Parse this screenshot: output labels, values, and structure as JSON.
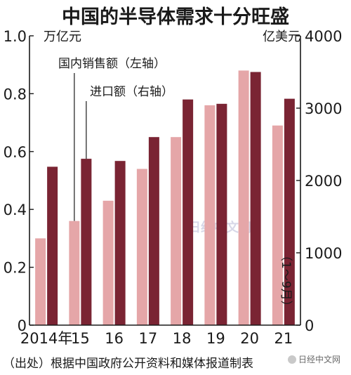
{
  "chart_data": {
    "type": "bar",
    "title": "中国的半导体需求十分旺盛",
    "categories": [
      "2014年",
      "15",
      "16",
      "17",
      "18",
      "19",
      "20",
      "21"
    ],
    "series": [
      {
        "name": "国内销售额（左轴）",
        "axis": "left",
        "color": "#e5a6a8",
        "values": [
          0.3,
          0.36,
          0.43,
          0.54,
          0.65,
          0.76,
          0.88,
          0.69
        ]
      },
      {
        "name": "进口额（右轴）",
        "axis": "right",
        "color": "#7a2433",
        "values": [
          2190,
          2300,
          2270,
          2600,
          3120,
          3060,
          3500,
          3130
        ]
      }
    ],
    "ylabel_left": "万亿元",
    "ylabel_right": "亿美元",
    "ylim_left": [
      0,
      1.0
    ],
    "ylim_right": [
      0,
      4000
    ],
    "yticks_left": [
      "0",
      "0.2",
      "0.4",
      "0.6",
      "0.8",
      "1.0"
    ],
    "yticks_right": [
      "0",
      "1000",
      "2000",
      "3000",
      "4000"
    ],
    "annotation": "（1～9月）",
    "source": "（出处）根据中国政府公开资料和媒体报道制表",
    "watermark": "日经中文网",
    "logo_text": "日经中文网",
    "grid": false
  }
}
